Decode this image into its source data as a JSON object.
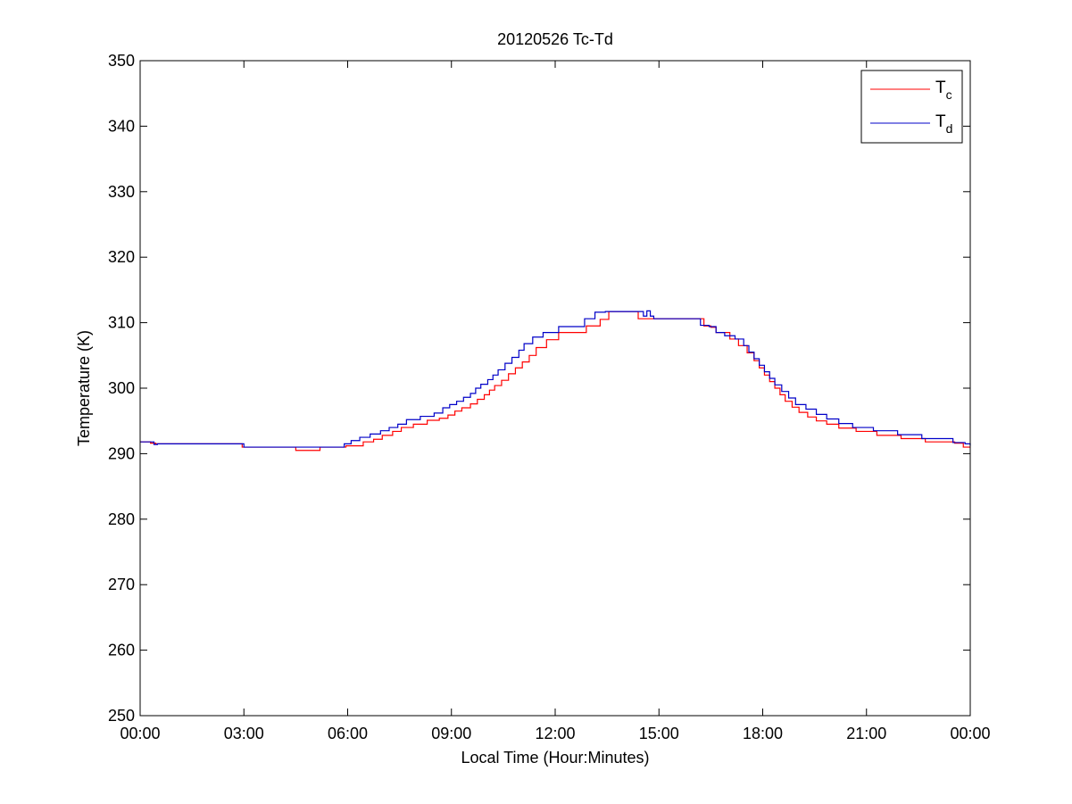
{
  "chart_data": {
    "type": "line",
    "title": "20120526 Tc-Td",
    "xlabel": "Local Time (Hour:Minutes)",
    "ylabel": "Temperature (K)",
    "xlim": [
      0,
      24
    ],
    "ylim": [
      250,
      350
    ],
    "x_ticks": [
      {
        "value": 0,
        "label": "00:00"
      },
      {
        "value": 3,
        "label": "03:00"
      },
      {
        "value": 6,
        "label": "06:00"
      },
      {
        "value": 9,
        "label": "09:00"
      },
      {
        "value": 12,
        "label": "12:00"
      },
      {
        "value": 15,
        "label": "15:00"
      },
      {
        "value": 18,
        "label": "18:00"
      },
      {
        "value": 21,
        "label": "21:00"
      },
      {
        "value": 24,
        "label": "00:00"
      }
    ],
    "y_ticks": [
      {
        "value": 250,
        "label": "250"
      },
      {
        "value": 260,
        "label": "260"
      },
      {
        "value": 270,
        "label": "270"
      },
      {
        "value": 280,
        "label": "280"
      },
      {
        "value": 290,
        "label": "290"
      },
      {
        "value": 300,
        "label": "300"
      },
      {
        "value": 310,
        "label": "310"
      },
      {
        "value": 320,
        "label": "320"
      },
      {
        "value": 330,
        "label": "330"
      },
      {
        "value": 340,
        "label": "340"
      },
      {
        "value": 350,
        "label": "350"
      }
    ],
    "grid": false,
    "legend_position": "top-right",
    "series": [
      {
        "legend_main": "T",
        "legend_sub": "c",
        "color": "#ff0000",
        "step": true,
        "x": [
          0,
          0.3,
          0.45,
          2.85,
          2.95,
          4.5,
          5.2,
          5.95,
          6.45,
          6.75,
          7.0,
          7.3,
          7.55,
          7.9,
          8.3,
          8.65,
          8.9,
          9.1,
          9.3,
          9.55,
          9.75,
          9.95,
          10.1,
          10.25,
          10.45,
          10.65,
          10.85,
          11.05,
          11.25,
          11.45,
          11.75,
          12.1,
          12.9,
          13.3,
          13.55,
          14.0,
          14.4,
          16.3,
          16.5,
          16.65,
          17.05,
          17.3,
          17.55,
          17.75,
          17.9,
          18.05,
          18.2,
          18.35,
          18.5,
          18.65,
          18.85,
          19.05,
          19.3,
          19.55,
          19.85,
          20.2,
          20.7,
          21.3,
          22.0,
          22.7,
          23.55,
          23.8,
          24.0
        ],
        "y": [
          291.8,
          291.6,
          291.5,
          291.5,
          291.0,
          290.5,
          291.0,
          291.2,
          291.8,
          292.2,
          292.8,
          293.4,
          294.0,
          294.5,
          295.1,
          295.4,
          295.9,
          296.5,
          297.0,
          297.6,
          298.3,
          299.0,
          299.7,
          300.4,
          301.2,
          302.2,
          303.1,
          304.0,
          305.0,
          306.2,
          307.4,
          308.5,
          309.5,
          310.5,
          311.7,
          311.7,
          310.6,
          309.5,
          309.3,
          308.5,
          307.5,
          306.5,
          305.4,
          304.2,
          303.1,
          302.0,
          301.0,
          300.0,
          299.0,
          298.0,
          297.1,
          296.3,
          295.6,
          295.0,
          294.5,
          293.9,
          293.4,
          292.8,
          292.3,
          291.8,
          291.6,
          291.0,
          291.0
        ]
      },
      {
        "legend_main": "T",
        "legend_sub": "d",
        "color": "#0000c8",
        "step": true,
        "x": [
          0,
          0.4,
          0.5,
          2.9,
          3.0,
          5.9,
          6.1,
          6.35,
          6.65,
          6.95,
          7.2,
          7.45,
          7.7,
          8.1,
          8.5,
          8.75,
          8.95,
          9.15,
          9.35,
          9.55,
          9.7,
          9.85,
          10.05,
          10.2,
          10.35,
          10.55,
          10.75,
          10.95,
          11.1,
          11.35,
          11.65,
          12.1,
          12.85,
          13.15,
          13.45,
          14.1,
          14.55,
          14.65,
          14.75,
          14.85,
          16.0,
          16.2,
          16.45,
          16.65,
          16.9,
          17.2,
          17.45,
          17.6,
          17.75,
          17.9,
          18.05,
          18.2,
          18.35,
          18.55,
          18.75,
          18.95,
          19.25,
          19.55,
          19.85,
          20.2,
          20.6,
          21.2,
          21.9,
          22.6,
          23.5,
          23.85,
          24.0
        ],
        "y": [
          291.8,
          291.4,
          291.5,
          291.5,
          291.0,
          291.5,
          292.0,
          292.5,
          293.0,
          293.5,
          294.0,
          294.5,
          295.2,
          295.7,
          296.2,
          297.0,
          297.5,
          298.0,
          298.6,
          299.2,
          300.0,
          300.6,
          301.3,
          302.0,
          302.8,
          303.8,
          304.7,
          305.8,
          306.8,
          307.8,
          308.5,
          309.4,
          310.6,
          311.6,
          311.7,
          311.7,
          311.0,
          311.8,
          311.0,
          310.6,
          310.6,
          309.6,
          309.4,
          308.5,
          308.0,
          307.5,
          306.5,
          305.5,
          304.5,
          303.5,
          302.5,
          301.5,
          300.5,
          299.5,
          298.5,
          297.5,
          296.8,
          296.0,
          295.3,
          294.6,
          294.0,
          293.5,
          292.9,
          292.3,
          291.7,
          291.5,
          291.2
        ]
      }
    ]
  }
}
